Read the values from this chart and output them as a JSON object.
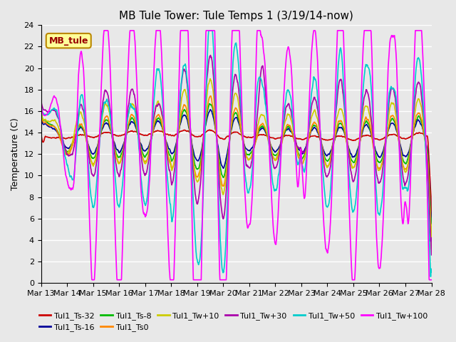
{
  "title": "MB Tule Tower: Tule Temps 1 (3/19/14-now)",
  "ylabel": "Temperature (C)",
  "ylim": [
    0,
    24
  ],
  "yticks": [
    0,
    2,
    4,
    6,
    8,
    10,
    12,
    14,
    16,
    18,
    20,
    22,
    24
  ],
  "xtick_labels": [
    "Mar 13",
    "Mar 14",
    "Mar 15",
    "Mar 16",
    "Mar 17",
    "Mar 18",
    "Mar 19",
    "Mar 20",
    "Mar 21",
    "Mar 22",
    "Mar 23",
    "Mar 24",
    "Mar 25",
    "Mar 26",
    "Mar 27",
    "Mar 28"
  ],
  "bg_color": "#e8e8e8",
  "grid_color": "#ffffff",
  "legend_box_facecolor": "#ffff99",
  "legend_box_edgecolor": "#bb8800",
  "series": [
    {
      "label": "Tul1_Ts-32",
      "color": "#cc0000",
      "lw": 1.2
    },
    {
      "label": "Tul1_Ts-16",
      "color": "#000099",
      "lw": 1.2
    },
    {
      "label": "Tul1_Ts-8",
      "color": "#00bb00",
      "lw": 1.2
    },
    {
      "label": "Tul1_Ts0",
      "color": "#ff8800",
      "lw": 1.2
    },
    {
      "label": "Tul1_Tw+10",
      "color": "#cccc00",
      "lw": 1.2
    },
    {
      "label": "Tul1_Tw+30",
      "color": "#aa00aa",
      "lw": 1.2
    },
    {
      "label": "Tul1_Tw+50",
      "color": "#00cccc",
      "lw": 1.2
    },
    {
      "label": "Tul1_Tw+100",
      "color": "#ff00ff",
      "lw": 1.2
    }
  ],
  "title_fontsize": 11,
  "label_fontsize": 9,
  "tick_fontsize": 8,
  "legend_fontsize": 8
}
